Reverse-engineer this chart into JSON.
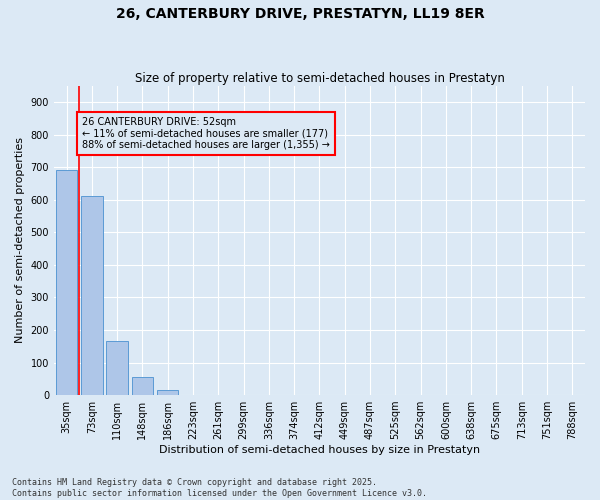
{
  "title": "26, CANTERBURY DRIVE, PRESTATYN, LL19 8ER",
  "subtitle": "Size of property relative to semi-detached houses in Prestatyn",
  "xlabel": "Distribution of semi-detached houses by size in Prestatyn",
  "ylabel": "Number of semi-detached properties",
  "categories": [
    "35sqm",
    "73sqm",
    "110sqm",
    "148sqm",
    "186sqm",
    "223sqm",
    "261sqm",
    "299sqm",
    "336sqm",
    "374sqm",
    "412sqm",
    "449sqm",
    "487sqm",
    "525sqm",
    "562sqm",
    "600sqm",
    "638sqm",
    "675sqm",
    "713sqm",
    "751sqm",
    "788sqm"
  ],
  "values": [
    690,
    610,
    165,
    55,
    15,
    0,
    0,
    0,
    0,
    0,
    0,
    0,
    0,
    0,
    0,
    0,
    0,
    0,
    0,
    0,
    0
  ],
  "bar_color": "#aec6e8",
  "bar_edge_color": "#5b9bd5",
  "property_size": "52sqm",
  "property_name": "26 CANTERBURY DRIVE",
  "pct_smaller": 11,
  "pct_larger": 88,
  "n_smaller": 177,
  "n_larger": 1355,
  "background_color": "#dce9f5",
  "grid_color": "#ffffff",
  "title_fontsize": 10,
  "subtitle_fontsize": 8.5,
  "axis_label_fontsize": 8,
  "tick_fontsize": 7,
  "footer_text": "Contains HM Land Registry data © Crown copyright and database right 2025.\nContains public sector information licensed under the Open Government Licence v3.0.",
  "footer_fontsize": 6,
  "ylim": [
    0,
    950
  ],
  "yticks": [
    0,
    100,
    200,
    300,
    400,
    500,
    600,
    700,
    800,
    900
  ]
}
